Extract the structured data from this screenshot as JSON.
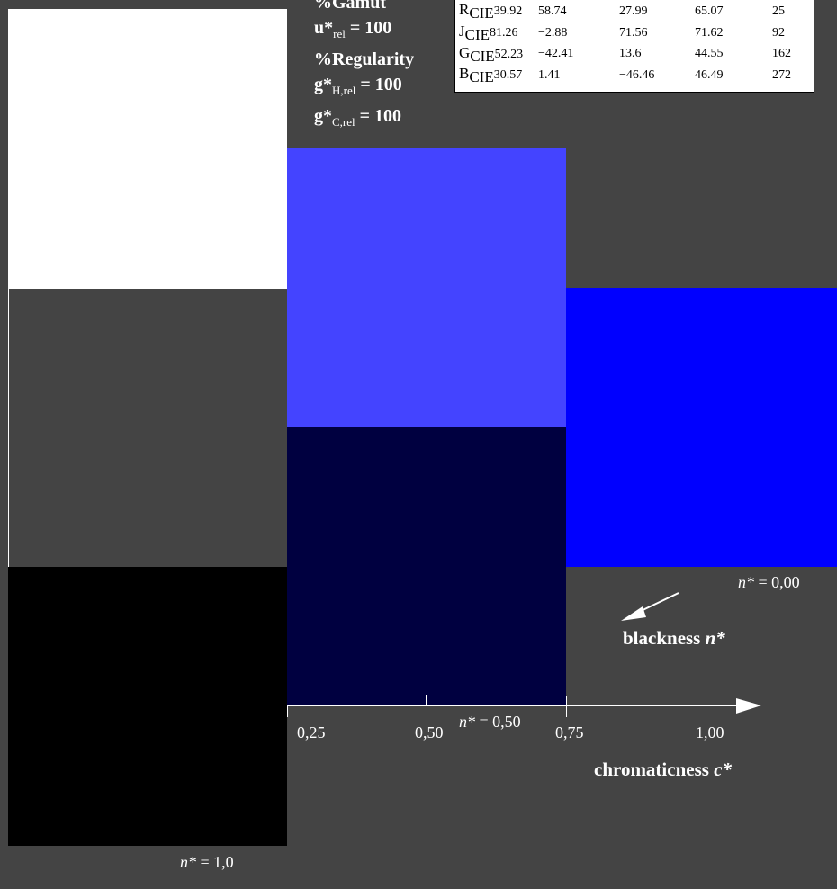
{
  "colors": {
    "background": "#444444",
    "white_patch": "#ffffff",
    "grey_patch": "#444444",
    "black_patch": "#000000",
    "blue_light": "#4444ff",
    "blue_dark": "#000040",
    "blue_full": "#0000ff"
  },
  "stats": {
    "gamut_label": "%Gamut",
    "u_label": "u*",
    "u_sub": "rel",
    "u_value": "= 100",
    "regularity_label": "%Regularity",
    "gh_label": "g*",
    "gh_sub": "H,rel",
    "gh_value": "= 100",
    "gc_label": "g*",
    "gc_sub": "C,rel",
    "gc_value": "= 100"
  },
  "cie_table": [
    {
      "letter": "R",
      "sub": "CIE",
      "v1": "39.92",
      "v2": "58.74",
      "v3": "27.99",
      "v4": "65.07",
      "v5": "25"
    },
    {
      "letter": "J",
      "sub": "CIE",
      "v1": "81.26",
      "v2": "−2.88",
      "v3": "71.56",
      "v4": "71.62",
      "v5": "92"
    },
    {
      "letter": "G",
      "sub": "CIE",
      "v1": "52.23",
      "v2": "−42.41",
      "v3": "13.6",
      "v4": "44.55",
      "v5": "162"
    },
    {
      "letter": "B",
      "sub": "CIE",
      "v1": "30.57",
      "v2": "1.41",
      "v3": "−46.46",
      "v4": "46.49",
      "v5": "272"
    }
  ],
  "labels": {
    "n_star": "n*",
    "n_000": " = 0,00",
    "n_050": " = 0,50",
    "n_10": " = 1,0",
    "blackness_text": "blackness ",
    "blackness_var": "n*",
    "chromaticness_text": "chromaticness ",
    "chromaticness_var": "c*"
  },
  "axis": {
    "ticks": [
      "0,25",
      "0,50",
      "0,75",
      "1,00"
    ]
  }
}
